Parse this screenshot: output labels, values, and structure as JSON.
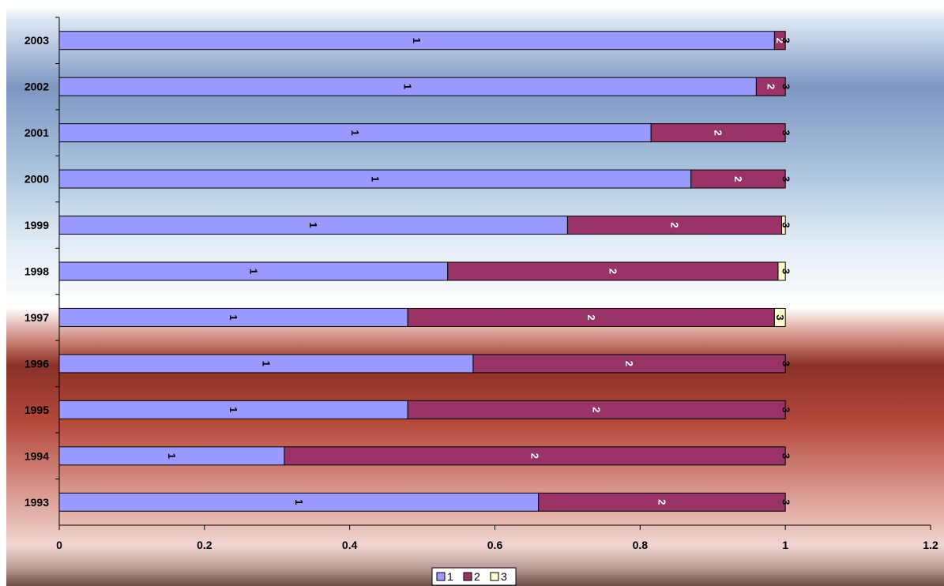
{
  "colors": {
    "series_1": "#9999ff",
    "series_2": "#993366",
    "series_3": "#ffffcc",
    "text_dark": "#000000",
    "text_light": "#ffffff"
  },
  "chart_data": {
    "type": "bar",
    "orientation": "horizontal",
    "stacked": true,
    "title": "",
    "xlabel": "",
    "ylabel": "",
    "categories": [
      "1993",
      "1994",
      "1995",
      "1996",
      "1997",
      "1998",
      "1999",
      "2000",
      "2001",
      "2002",
      "2003"
    ],
    "series": [
      {
        "name": "1",
        "values": [
          0.66,
          0.31,
          0.48,
          0.57,
          0.48,
          0.535,
          0.7,
          0.87,
          0.815,
          0.96,
          0.985
        ]
      },
      {
        "name": "2",
        "values": [
          0.34,
          0.69,
          0.52,
          0.43,
          0.505,
          0.455,
          0.295,
          0.13,
          0.185,
          0.04,
          0.015
        ]
      },
      {
        "name": "3",
        "values": [
          0.0,
          0.0,
          0.0,
          0.0,
          0.015,
          0.01,
          0.005,
          0.0,
          0.0,
          0.0,
          0.0
        ]
      }
    ],
    "data_labels": [
      "1",
      "2",
      "3"
    ],
    "xlim": [
      0,
      1.2
    ],
    "xticks": [
      "0",
      "0.2",
      "0.4",
      "0.6",
      "0.8",
      "1",
      "1.2"
    ],
    "grid": false,
    "legend": {
      "position": "bottom",
      "entries": [
        "1",
        "2",
        "3"
      ]
    }
  }
}
